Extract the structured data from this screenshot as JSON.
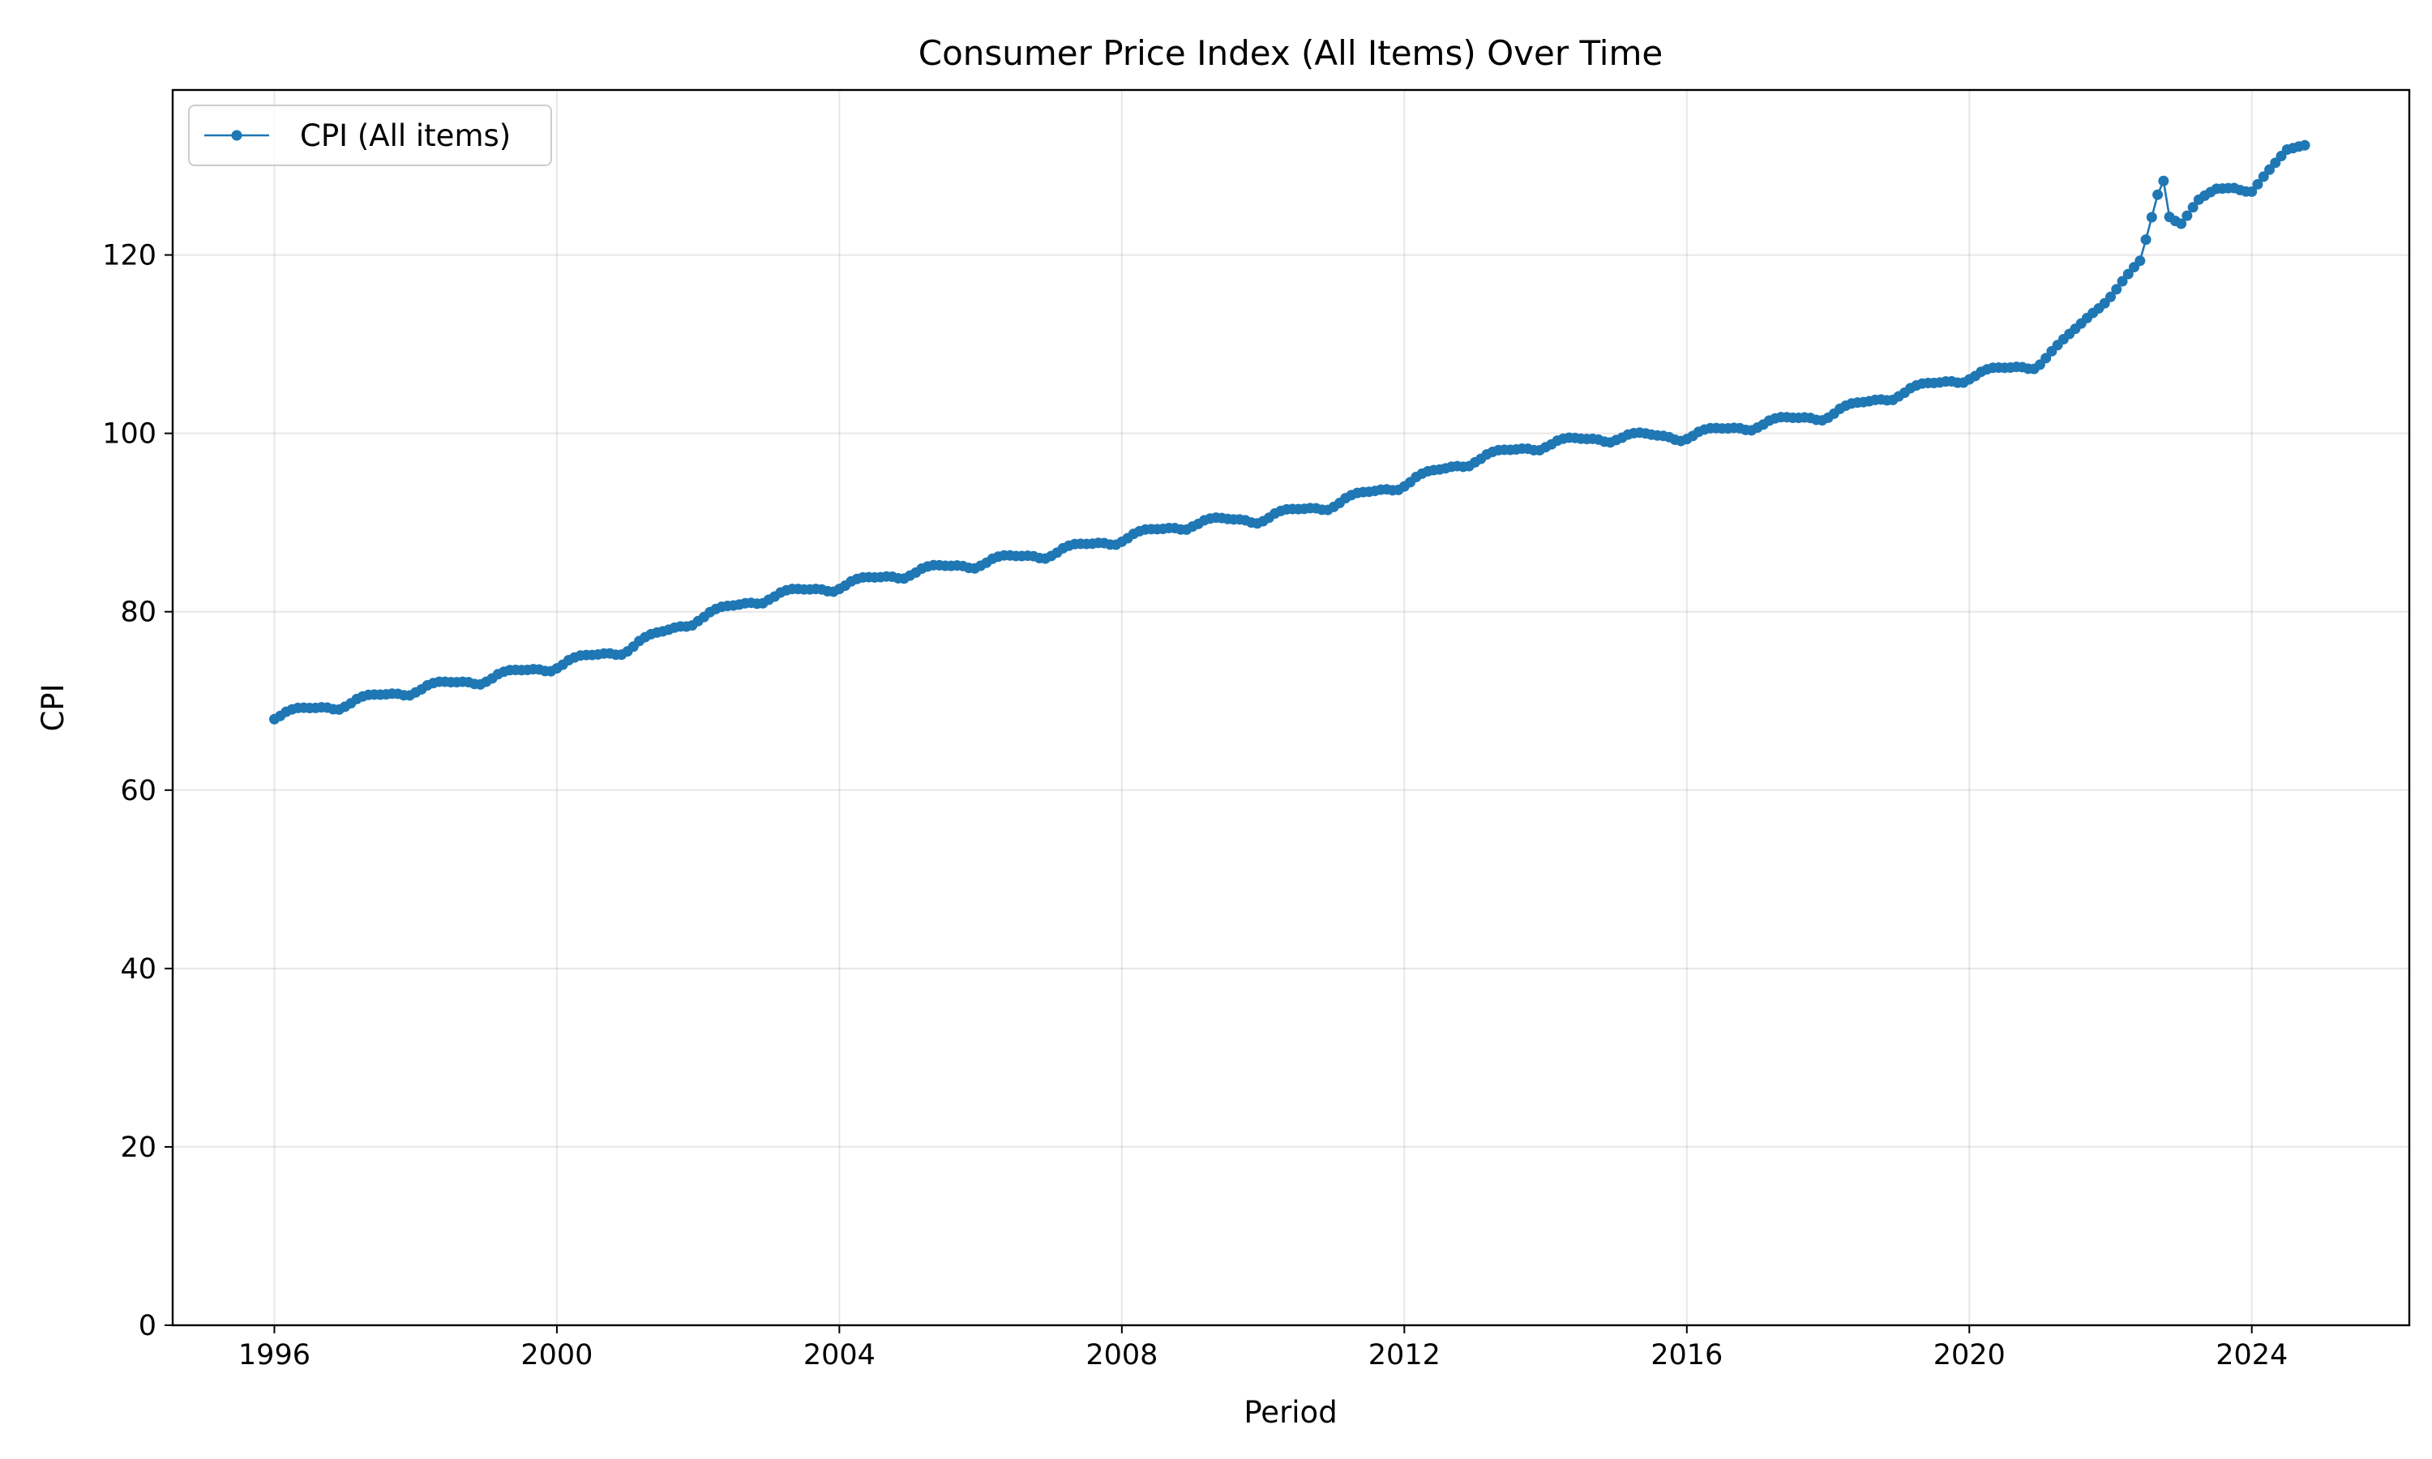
{
  "chart_data": {
    "type": "line",
    "title": "Consumer Price Index (All Items) Over Time",
    "xlabel": "Period",
    "ylabel": "CPI",
    "xlim": [
      1994.56,
      2026.23
    ],
    "ylim": [
      0,
      138.5
    ],
    "x_ticks": [
      1996,
      2000,
      2004,
      2008,
      2012,
      2016,
      2020,
      2024
    ],
    "x_tick_labels": [
      "1996",
      "2000",
      "2004",
      "2008",
      "2012",
      "2016",
      "2020",
      "2024"
    ],
    "y_ticks": [
      0,
      20,
      40,
      60,
      80,
      100,
      120
    ],
    "y_tick_labels": [
      "0",
      "20",
      "40",
      "60",
      "80",
      "100",
      "120"
    ],
    "grid": true,
    "legend_position": "top-left",
    "series": [
      {
        "name": "CPI (All items)",
        "color": "#1f77b4",
        "marker": "circle",
        "frequency": "monthly",
        "start": 1996.0,
        "annual_points": [
          [
            1996.0,
            68.2
          ],
          [
            1997.0,
            69.6
          ],
          [
            1998.0,
            71.2
          ],
          [
            1999.0,
            72.4
          ],
          [
            2000.0,
            73.9
          ],
          [
            2001.0,
            75.8
          ],
          [
            2002.0,
            79.2
          ],
          [
            2003.0,
            81.6
          ],
          [
            2004.0,
            82.8
          ],
          [
            2005.0,
            84.3
          ],
          [
            2006.0,
            85.4
          ],
          [
            2007.0,
            86.5
          ],
          [
            2008.0,
            88.1
          ],
          [
            2009.0,
            89.8
          ],
          [
            2010.0,
            90.4
          ],
          [
            2011.0,
            92.0
          ],
          [
            2012.0,
            94.3
          ],
          [
            2013.0,
            97.0
          ],
          [
            2014.0,
            98.7
          ],
          [
            2015.0,
            99.5
          ],
          [
            2016.0,
            99.6
          ],
          [
            2017.0,
            100.9
          ],
          [
            2018.0,
            102.0
          ],
          [
            2019.0,
            104.4
          ],
          [
            2020.0,
            106.3
          ],
          [
            2021.0,
            107.8
          ],
          [
            2022.0,
            115.4
          ],
          [
            2022.42,
            119.2
          ],
          [
            2022.5,
            121.6
          ],
          [
            2022.67,
            126.8
          ],
          [
            2022.75,
            128.3
          ],
          [
            2022.83,
            124.4
          ],
          [
            2023.0,
            123.6
          ],
          [
            2023.25,
            126.0
          ],
          [
            2023.5,
            127.3
          ],
          [
            2023.75,
            127.5
          ],
          [
            2024.0,
            127.2
          ],
          [
            2024.3,
            129.8
          ],
          [
            2024.5,
            131.7
          ],
          [
            2024.75,
            132.3
          ]
        ]
      }
    ]
  }
}
